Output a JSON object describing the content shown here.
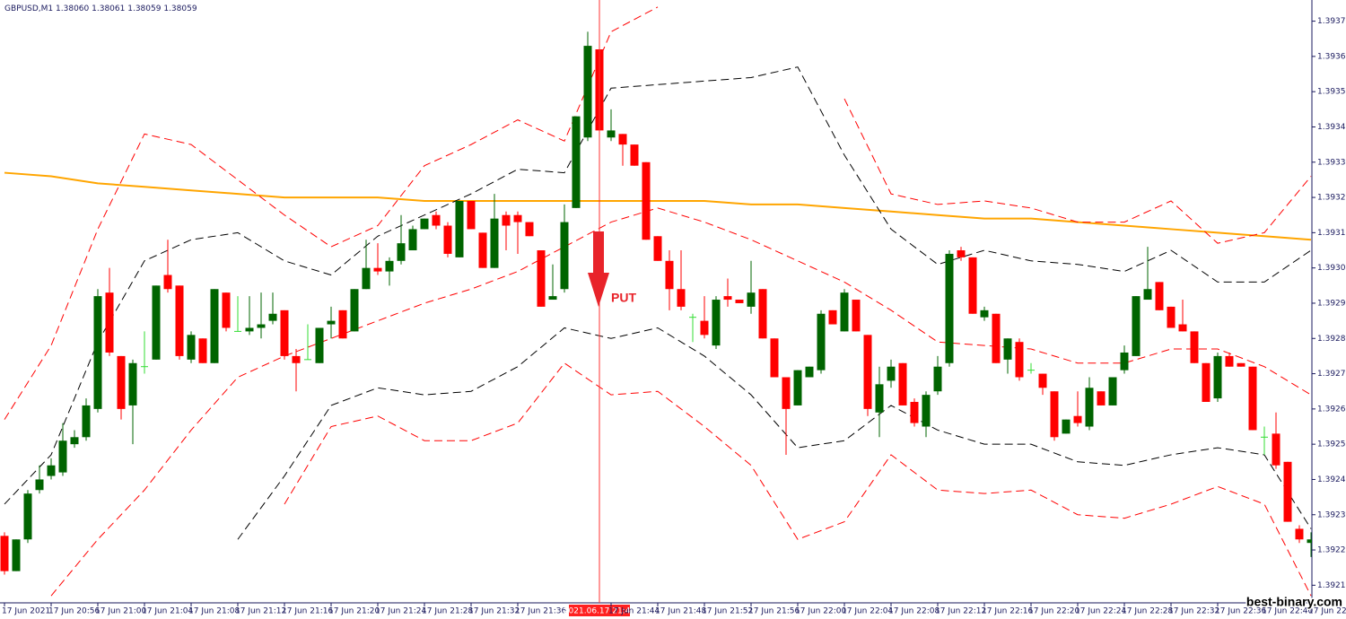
{
  "chart_data": {
    "type": "candlestick",
    "header": {
      "symbol": "GBPUSD,M1",
      "quote": [
        "1.38060",
        "1.38061",
        "1.38059",
        "1.38059"
      ]
    },
    "annotation": "PUT",
    "watermark": "best-binary.com",
    "crosshair": "2021.06.17 21:43",
    "up_color": "#006400",
    "down_color": "#ff0000",
    "doji_color": "#33dd33",
    "ylim": [
      1.3921,
      1.39381
    ],
    "yticks": [
      1.39375,
      1.39365,
      1.39355,
      1.39345,
      1.39335,
      1.39325,
      1.39315,
      1.39305,
      1.39295,
      1.39285,
      1.39275,
      1.39265,
      1.39255,
      1.39245,
      1.39235,
      1.39225,
      1.39215
    ],
    "categories": [
      "17 Jun 2021",
      null,
      null,
      null,
      "17 Jun 20:56",
      null,
      null,
      null,
      "17 Jun 21:00",
      null,
      null,
      null,
      "17 Jun 21:04",
      null,
      null,
      null,
      "17 Jun 21:08",
      null,
      null,
      null,
      "17 Jun 21:12",
      null,
      null,
      null,
      "17 Jun 21:16",
      null,
      null,
      null,
      "17 Jun 21:20",
      null,
      null,
      null,
      "17 Jun 21:24",
      null,
      null,
      null,
      "17 Jun 21:28",
      null,
      null,
      null,
      "17 Jun 21:32",
      null,
      null,
      null,
      "17 Jun 21:36",
      null,
      null,
      null,
      null,
      null,
      null,
      "2021.06.17 21:43",
      "17 Jun 21:44",
      null,
      null,
      null,
      "17 Jun 21:48",
      null,
      null,
      null,
      "17 Jun 21:52",
      null,
      null,
      null,
      "17 Jun 21:56",
      null,
      null,
      null,
      "17 Jun 22:00",
      null,
      null,
      null,
      "17 Jun 22:04",
      null,
      null,
      null,
      "17 Jun 22:08",
      null,
      null,
      null,
      "17 Jun 22:12",
      null,
      null,
      null,
      "17 Jun 22:16",
      null,
      null,
      null,
      "17 Jun 22:20",
      null,
      null,
      null,
      "17 Jun 22:24",
      null,
      null,
      null,
      "17 Jun 22:28",
      null,
      null,
      null,
      "17 Jun 22:32",
      null,
      null,
      null,
      "17 Jun 22:36",
      null,
      null,
      null,
      "17 Jun 22:40",
      null,
      null,
      null,
      "17 Jun 22:4"
    ],
    "open": [
      1.39229,
      1.39219,
      1.39228,
      1.39242,
      1.39246,
      1.39247,
      1.39255,
      1.39257,
      1.39265,
      1.39298,
      1.3928,
      1.39266,
      1.39277,
      1.39279,
      1.39303,
      1.393,
      1.39279,
      1.39285,
      1.39278,
      1.39298,
      1.39287,
      1.39287,
      1.39288,
      1.3929,
      1.39293,
      1.3928,
      1.39279,
      1.39278,
      1.39289,
      1.39293,
      1.39287,
      1.39299,
      1.39305,
      1.39304,
      1.39307,
      1.3931,
      1.39316,
      1.3932,
      1.39317,
      1.39308,
      1.39324,
      1.39315,
      1.39305,
      1.3932,
      1.3932,
      1.39318,
      1.3931,
      1.39296,
      1.39299,
      1.39322,
      1.39342,
      1.39367,
      1.39342,
      1.39343,
      1.3934,
      1.39335,
      1.39314,
      1.39307,
      1.39299,
      1.39291,
      1.3929,
      1.39283,
      1.39297,
      1.39296,
      1.39294,
      1.39299,
      1.39285,
      1.39274,
      1.39266,
      1.39274,
      1.39276,
      1.39293,
      1.39287,
      1.39296,
      1.39286,
      1.39264,
      1.39273,
      1.39278,
      1.39267,
      1.3926,
      1.3927,
      1.39278,
      1.3931,
      1.39308,
      1.39291,
      1.39292,
      1.39279,
      1.39284,
      1.39276,
      1.39275,
      1.3927,
      1.39258,
      1.39263,
      1.3926,
      1.3927,
      1.39266,
      1.39276,
      1.3928,
      1.39296,
      1.39301,
      1.39294,
      1.39289,
      1.39287,
      1.39278,
      1.39268,
      1.3928,
      1.39278,
      1.39277,
      1.39257,
      1.39258,
      1.3925,
      1.39231,
      1.39227
    ],
    "high": [
      1.3923,
      1.39228,
      1.39242,
      1.39249,
      1.39251,
      1.39261,
      1.39259,
      1.39268,
      1.39299,
      1.39305,
      1.3928,
      1.39279,
      1.39287,
      1.393,
      1.39313,
      1.393,
      1.39287,
      1.39285,
      1.39299,
      1.39298,
      1.39297,
      1.39297,
      1.39298,
      1.39298,
      1.39293,
      1.39282,
      1.39289,
      1.39288,
      1.39294,
      1.39293,
      1.39299,
      1.39313,
      1.39312,
      1.39308,
      1.3932,
      1.39317,
      1.39319,
      1.39321,
      1.39318,
      1.39324,
      1.39324,
      1.39315,
      1.39326,
      1.39321,
      1.39321,
      1.39318,
      1.3931,
      1.39306,
      1.39323,
      1.39348,
      1.39372,
      1.39367,
      1.3935,
      1.39343,
      1.3934,
      1.39335,
      1.39314,
      1.3931,
      1.3931,
      1.39292,
      1.39297,
      1.39297,
      1.39302,
      1.39296,
      1.39307,
      1.39299,
      1.39285,
      1.39274,
      1.39276,
      1.39277,
      1.39293,
      1.39293,
      1.39299,
      1.39296,
      1.39286,
      1.39277,
      1.39279,
      1.39278,
      1.39268,
      1.3927,
      1.3928,
      1.3931,
      1.39311,
      1.39308,
      1.39294,
      1.39292,
      1.39285,
      1.39285,
      1.39278,
      1.39275,
      1.3927,
      1.39262,
      1.3927,
      1.39274,
      1.3927,
      1.39274,
      1.39283,
      1.39297,
      1.39311,
      1.39301,
      1.39294,
      1.39296,
      1.39287,
      1.39278,
      1.39281,
      1.39281,
      1.39278,
      1.39277,
      1.3926,
      1.39264,
      1.3925,
      1.39232,
      1.3923
    ],
    "low": [
      1.39218,
      1.39219,
      1.39227,
      1.39241,
      1.39245,
      1.39246,
      1.39254,
      1.39256,
      1.39264,
      1.3928,
      1.39262,
      1.39255,
      1.39275,
      1.39279,
      1.39298,
      1.39279,
      1.39278,
      1.39278,
      1.39278,
      1.39287,
      1.39287,
      1.39286,
      1.39285,
      1.39289,
      1.39279,
      1.3927,
      1.39279,
      1.39278,
      1.39285,
      1.39285,
      1.39287,
      1.39299,
      1.39303,
      1.393,
      1.39306,
      1.3931,
      1.39316,
      1.39316,
      1.39308,
      1.39308,
      1.39316,
      1.39305,
      1.39305,
      1.3931,
      1.39309,
      1.39314,
      1.39294,
      1.39296,
      1.39298,
      1.39322,
      1.39341,
      1.39343,
      1.39341,
      1.39334,
      1.39334,
      1.39313,
      1.39307,
      1.39293,
      1.39293,
      1.39284,
      1.39285,
      1.39282,
      1.39294,
      1.39295,
      1.39292,
      1.39285,
      1.39274,
      1.39252,
      1.39266,
      1.39274,
      1.39275,
      1.39289,
      1.39287,
      1.39287,
      1.39263,
      1.39257,
      1.39271,
      1.39266,
      1.3926,
      1.39257,
      1.39269,
      1.39277,
      1.39307,
      1.39292,
      1.3929,
      1.39278,
      1.39275,
      1.39273,
      1.39275,
      1.39269,
      1.39256,
      1.39258,
      1.3926,
      1.39259,
      1.39266,
      1.39266,
      1.39275,
      1.3928,
      1.39296,
      1.39293,
      1.39288,
      1.39287,
      1.39278,
      1.39267,
      1.39267,
      1.39277,
      1.39277,
      1.39259,
      1.39252,
      1.39248,
      1.39233,
      1.39227,
      1.39223
    ],
    "close": [
      1.39219,
      1.39228,
      1.39241,
      1.39245,
      1.39249,
      1.39256,
      1.39257,
      1.39266,
      1.39297,
      1.39281,
      1.39265,
      1.39278,
      1.39277,
      1.393,
      1.39299,
      1.3928,
      1.39286,
      1.39278,
      1.39299,
      1.39288,
      1.39287,
      1.39288,
      1.39289,
      1.39292,
      1.3928,
      1.39278,
      1.39279,
      1.39288,
      1.3929,
      1.39285,
      1.39299,
      1.39305,
      1.39304,
      1.39307,
      1.39312,
      1.39316,
      1.39319,
      1.39317,
      1.39309,
      1.39324,
      1.39316,
      1.39305,
      1.39319,
      1.39317,
      1.39318,
      1.39314,
      1.39294,
      1.39297,
      1.39318,
      1.39348,
      1.39368,
      1.39344,
      1.39344,
      1.3934,
      1.39334,
      1.39313,
      1.39307,
      1.39299,
      1.39294,
      1.39291,
      1.39286,
      1.39296,
      1.39296,
      1.39295,
      1.39298,
      1.39285,
      1.39274,
      1.39265,
      1.39276,
      1.39277,
      1.39292,
      1.39289,
      1.39298,
      1.39287,
      1.39265,
      1.39272,
      1.39277,
      1.39266,
      1.39261,
      1.39269,
      1.39277,
      1.39309,
      1.39308,
      1.39292,
      1.39293,
      1.39278,
      1.39285,
      1.39274,
      1.39276,
      1.39271,
      1.39257,
      1.39262,
      1.39261,
      1.39271,
      1.39266,
      1.39274,
      1.39281,
      1.39297,
      1.39299,
      1.39293,
      1.39288,
      1.39287,
      1.39278,
      1.39267,
      1.3928,
      1.39277,
      1.39277,
      1.39259,
      1.39257,
      1.39249,
      1.39233,
      1.39228,
      1.39228
    ],
    "lines_x": [
      0,
      4,
      8,
      12,
      16,
      20,
      24,
      28,
      32,
      36,
      40,
      44,
      48,
      52,
      56,
      60,
      64,
      68,
      72,
      76,
      80,
      84,
      88,
      92,
      96,
      100,
      104,
      108,
      112
    ],
    "lines": [
      {
        "color": "#ffa500",
        "dashed": false,
        "values": [
          1.39332,
          1.39331,
          1.39329,
          1.39328,
          1.39327,
          1.39326,
          1.39325,
          1.39325,
          1.39325,
          1.39324,
          1.39324,
          1.39324,
          1.39324,
          1.39324,
          1.39324,
          1.39324,
          1.39323,
          1.39323,
          1.39322,
          1.39321,
          1.3932,
          1.39319,
          1.39319,
          1.39318,
          1.39317,
          1.39316,
          1.39315,
          1.39314,
          1.39313
        ]
      },
      {
        "color": "#000000",
        "dashed": true,
        "values": [
          1.39238,
          1.39252,
          1.39284,
          1.39307,
          1.39313,
          1.39315,
          1.39307,
          1.39303,
          1.39314,
          1.3932,
          1.39326,
          1.39333,
          1.39332,
          1.39356,
          1.39357,
          1.39358,
          1.39359,
          1.39362,
          1.39337,
          1.39316,
          1.39306,
          1.3931,
          1.39307,
          1.39306,
          1.39304,
          1.3931,
          1.39301,
          1.39301,
          1.3931
        ]
      },
      {
        "color": "#000000",
        "dashed": true,
        "values": [
          null,
          null,
          null,
          null,
          null,
          1.39228,
          1.39246,
          1.39266,
          1.39271,
          1.39269,
          1.3927,
          1.39277,
          1.39288,
          1.39285,
          1.39288,
          1.3928,
          1.39269,
          1.39254,
          1.39256,
          1.39266,
          1.39259,
          1.39255,
          1.39255,
          1.3925,
          1.39249,
          1.39252,
          1.39254,
          1.39252,
          1.39231
        ]
      },
      {
        "color": "#ff0000",
        "dashed": true,
        "values": [
          1.39262,
          1.39283,
          1.39316,
          1.39343,
          1.3934,
          1.3933,
          1.3932,
          1.39311,
          1.39317,
          1.39334,
          1.3934,
          1.39347,
          1.39341,
          1.39372,
          1.39379,
          null,
          null,
          null,
          1.39353,
          1.39326,
          1.39323,
          1.39324,
          1.39322,
          1.39318,
          1.39318,
          1.39324,
          1.39312,
          1.39315,
          1.39331
        ]
      },
      {
        "color": "#ff0000",
        "dashed": true,
        "values": [
          null,
          1.39212,
          1.39228,
          1.39242,
          1.39259,
          1.39274,
          1.3928,
          1.39285,
          1.3929,
          1.39295,
          1.39299,
          1.39304,
          1.39311,
          1.39318,
          1.39322,
          1.39318,
          1.39313,
          1.39307,
          1.39301,
          1.39293,
          1.39284,
          1.39283,
          1.39282,
          1.39278,
          1.39278,
          1.39282,
          1.39282,
          1.39277,
          1.39269
        ]
      },
      {
        "color": "#ff0000",
        "dashed": true,
        "values": [
          null,
          null,
          null,
          null,
          null,
          null,
          1.39238,
          1.3926,
          1.39263,
          1.39256,
          1.39256,
          1.39261,
          1.39278,
          1.39269,
          1.3927,
          1.3926,
          1.39249,
          1.39228,
          1.39233,
          1.39252,
          1.39242,
          1.39241,
          1.39242,
          1.39235,
          1.39234,
          1.39238,
          1.39243,
          1.39238,
          1.39212
        ]
      }
    ]
  }
}
